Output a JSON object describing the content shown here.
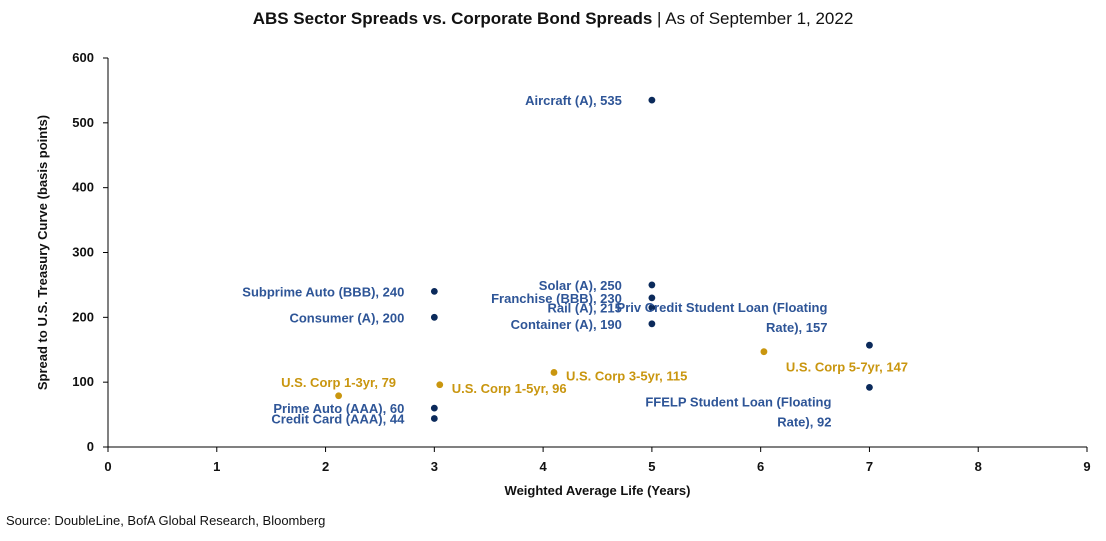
{
  "title": {
    "main": "ABS Sector Spreads vs. Corporate Bond Spreads",
    "separator": " | ",
    "sub": "As of September 1, 2022"
  },
  "source": "Source: DoubleLine, BofA Global Research, Bloomberg",
  "colors": {
    "abs": "#0b2a5b",
    "abs_label": "#2e5597",
    "corp": "#c9960f",
    "axis": "#000000"
  },
  "chart_data": {
    "type": "scatter",
    "title": "ABS Sector Spreads vs. Corporate Bond Spreads | As of September 1, 2022",
    "xlabel": "Weighted Average Life (Years)",
    "ylabel": "Spread to U.S. Treasury Curve (basis points)",
    "xlim": [
      0,
      9
    ],
    "ylim": [
      0,
      600
    ],
    "xticks": [
      "0",
      "1",
      "2",
      "3",
      "4",
      "5",
      "6",
      "7",
      "8",
      "9"
    ],
    "yticks": [
      "0",
      "100",
      "200",
      "300",
      "400",
      "500",
      "600"
    ],
    "grid": false,
    "points": [
      {
        "label": "Aircraft (A), 535",
        "x": 5,
        "y": 535,
        "group": "abs",
        "anchor": "left"
      },
      {
        "label": "Solar (A), 250",
        "x": 5,
        "y": 250,
        "group": "abs",
        "anchor": "left"
      },
      {
        "label": "Franchise (BBB), 230",
        "x": 5,
        "y": 230,
        "group": "abs",
        "anchor": "left"
      },
      {
        "label": "Rail (A), 215",
        "x": 5,
        "y": 215,
        "group": "abs",
        "anchor": "left"
      },
      {
        "label": "Container (A), 190",
        "x": 5,
        "y": 190,
        "group": "abs",
        "anchor": "left"
      },
      {
        "label": "Subprime Auto (BBB), 240",
        "x": 3,
        "y": 240,
        "group": "abs",
        "anchor": "left"
      },
      {
        "label": "Consumer (A), 200",
        "x": 3,
        "y": 200,
        "group": "abs",
        "anchor": "left"
      },
      {
        "label": "Prime Auto (AAA), 60",
        "x": 3,
        "y": 60,
        "group": "abs",
        "anchor": "left"
      },
      {
        "label": "Credit Card (AAA), 44",
        "x": 3,
        "y": 44,
        "group": "abs",
        "anchor": "left"
      },
      {
        "label": [
          "Priv Credit Student Loan (Floating",
          "Rate), 157"
        ],
        "x": 7,
        "y": 157,
        "group": "abs",
        "anchor": "above-left"
      },
      {
        "label": [
          "FFELP Student Loan (Floating",
          "Rate), 92"
        ],
        "x": 7,
        "y": 92,
        "group": "abs",
        "anchor": "below-left"
      },
      {
        "label": "U.S. Corp 1-3yr, 79",
        "x": 2.12,
        "y": 79,
        "group": "corp",
        "anchor": "above"
      },
      {
        "label": "U.S. Corp 1-5yr, 96",
        "x": 3.05,
        "y": 96,
        "group": "corp",
        "anchor": "right"
      },
      {
        "label": "U.S. Corp 3-5yr, 115",
        "x": 4.1,
        "y": 115,
        "group": "corp",
        "anchor": "right"
      },
      {
        "label": "U.S. Corp 5-7yr, 147",
        "x": 6.03,
        "y": 147,
        "group": "corp",
        "anchor": "below-right"
      }
    ]
  }
}
